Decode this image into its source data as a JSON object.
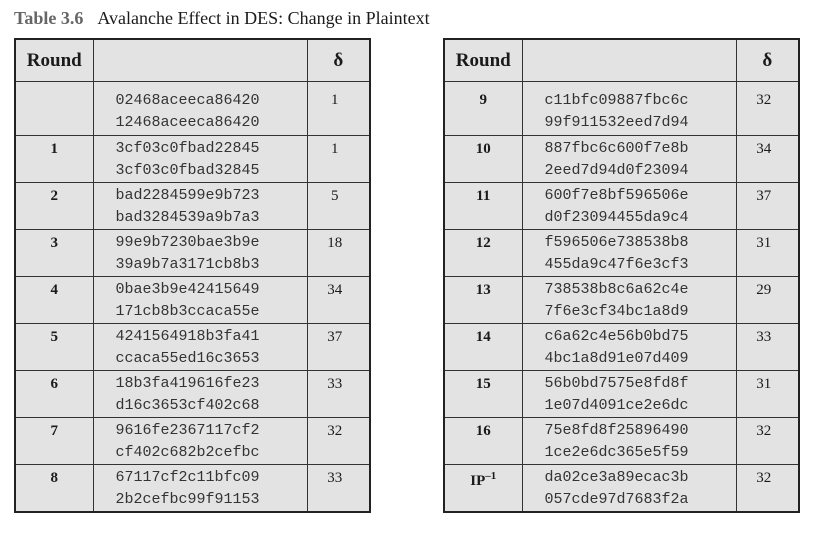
{
  "caption": {
    "label": "Table 3.6",
    "title": "Avalanche Effect in DES: Change in Plaintext"
  },
  "headers": {
    "round": "Round",
    "values": "",
    "delta": "δ"
  },
  "left_table": [
    {
      "round": "",
      "line1": "02468aceeca86420",
      "line2": "12468aceeca86420",
      "delta": "1"
    },
    {
      "round": "1",
      "line1": "3cf03c0fbad22845",
      "line2": "3cf03c0fbad32845",
      "delta": "1"
    },
    {
      "round": "2",
      "line1": "bad2284599e9b723",
      "line2": "bad3284539a9b7a3",
      "delta": "5"
    },
    {
      "round": "3",
      "line1": "99e9b7230bae3b9e",
      "line2": "39a9b7a3171cb8b3",
      "delta": "18"
    },
    {
      "round": "4",
      "line1": "0bae3b9e42415649",
      "line2": "171cb8b3ccaca55e",
      "delta": "34"
    },
    {
      "round": "5",
      "line1": "4241564918b3fa41",
      "line2": "ccaca55ed16c3653",
      "delta": "37"
    },
    {
      "round": "6",
      "line1": "18b3fa419616fe23",
      "line2": "d16c3653cf402c68",
      "delta": "33"
    },
    {
      "round": "7",
      "line1": "9616fe2367117cf2",
      "line2": "cf402c682b2cefbc",
      "delta": "32"
    },
    {
      "round": "8",
      "line1": "67117cf2c11bfc09",
      "line2": "2b2cefbc99f91153",
      "delta": "33"
    }
  ],
  "right_table": [
    {
      "round": "9",
      "line1": "c11bfc09887fbc6c",
      "line2": "99f911532eed7d94",
      "delta": "32"
    },
    {
      "round": "10",
      "line1": "887fbc6c600f7e8b",
      "line2": "2eed7d94d0f23094",
      "delta": "34"
    },
    {
      "round": "11",
      "line1": "600f7e8bf596506e",
      "line2": "d0f23094455da9c4",
      "delta": "37"
    },
    {
      "round": "12",
      "line1": "f596506e738538b8",
      "line2": "455da9c47f6e3cf3",
      "delta": "31"
    },
    {
      "round": "13",
      "line1": "738538b8c6a62c4e",
      "line2": "7f6e3cf34bc1a8d9",
      "delta": "29"
    },
    {
      "round": "14",
      "line1": "c6a62c4e56b0bd75",
      "line2": "4bc1a8d91e07d409",
      "delta": "33"
    },
    {
      "round": "15",
      "line1": "56b0bd7575e8fd8f",
      "line2": "1e07d4091ce2e6dc",
      "delta": "31"
    },
    {
      "round": "16",
      "line1": "75e8fd8f25896490",
      "line2": "1ce2e6dc365e5f59",
      "delta": "32"
    },
    {
      "round": "IP",
      "round_sup": "–1",
      "line1": "da02ce3a89ecac3b",
      "line2": "057cde97d7683f2a",
      "delta": "32"
    }
  ]
}
